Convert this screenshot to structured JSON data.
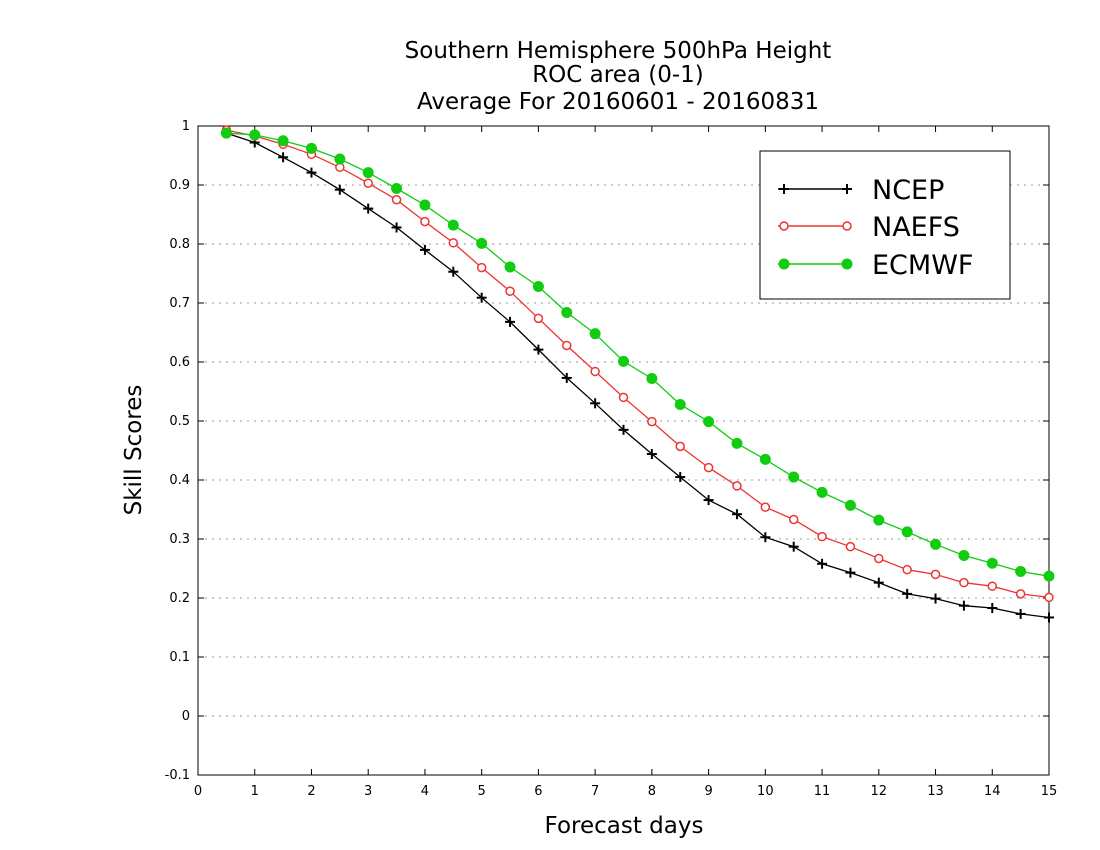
{
  "chart_data": {
    "type": "line",
    "title_lines": [
      "Southern Hemisphere 500hPa Height",
      "ROC area (0-1)",
      "Average For 20160601 - 20160831"
    ],
    "xlabel": "Forecast days",
    "ylabel": "Skill Scores",
    "xlim": [
      0,
      15
    ],
    "ylim": [
      -0.1,
      1
    ],
    "x_ticks": [
      "0",
      "1",
      "2",
      "3",
      "4",
      "5",
      "6",
      "7",
      "8",
      "9",
      "10",
      "11",
      "12",
      "13",
      "14",
      "15"
    ],
    "y_ticks": [
      "-0.1",
      "0",
      "0.1",
      "0.2",
      "0.3",
      "0.4",
      "0.5",
      "0.6",
      "0.7",
      "0.8",
      "0.9",
      "1"
    ],
    "grid": "horizontal dotted",
    "legend_position": "top-right",
    "x": [
      0.5,
      1,
      1.5,
      2,
      2.5,
      3,
      3.5,
      4,
      4.5,
      5,
      5.5,
      6,
      6.5,
      7,
      7.5,
      8,
      8.5,
      9,
      9.5,
      10,
      10.5,
      11,
      11.5,
      12,
      12.5,
      13,
      13.5,
      14,
      14.5,
      15
    ],
    "series": [
      {
        "name": "NCEP",
        "color": "#000000",
        "marker": "plus",
        "values": [
          0.988,
          0.972,
          0.947,
          0.921,
          0.892,
          0.86,
          0.828,
          0.79,
          0.753,
          0.709,
          0.668,
          0.621,
          0.573,
          0.53,
          0.485,
          0.444,
          0.405,
          0.366,
          0.342,
          0.303,
          0.287,
          0.258,
          0.243,
          0.226,
          0.207,
          0.199,
          0.187,
          0.183,
          0.173,
          0.167
        ]
      },
      {
        "name": "NAEFS",
        "color": "#ee3333",
        "marker": "open-circle",
        "values": [
          0.993,
          0.983,
          0.969,
          0.952,
          0.93,
          0.903,
          0.875,
          0.838,
          0.802,
          0.76,
          0.72,
          0.674,
          0.628,
          0.584,
          0.54,
          0.499,
          0.457,
          0.421,
          0.39,
          0.354,
          0.333,
          0.304,
          0.287,
          0.267,
          0.248,
          0.24,
          0.226,
          0.22,
          0.207,
          0.201
        ]
      },
      {
        "name": "ECMWF",
        "color": "#11cc11",
        "marker": "filled-circle",
        "values": [
          0.988,
          0.985,
          0.975,
          0.962,
          0.944,
          0.921,
          0.894,
          0.866,
          0.832,
          0.801,
          0.761,
          0.728,
          0.684,
          0.648,
          0.601,
          0.572,
          0.528,
          0.499,
          0.462,
          0.435,
          0.405,
          0.379,
          0.357,
          0.332,
          0.312,
          0.291,
          0.272,
          0.259,
          0.245,
          0.237
        ]
      }
    ]
  }
}
